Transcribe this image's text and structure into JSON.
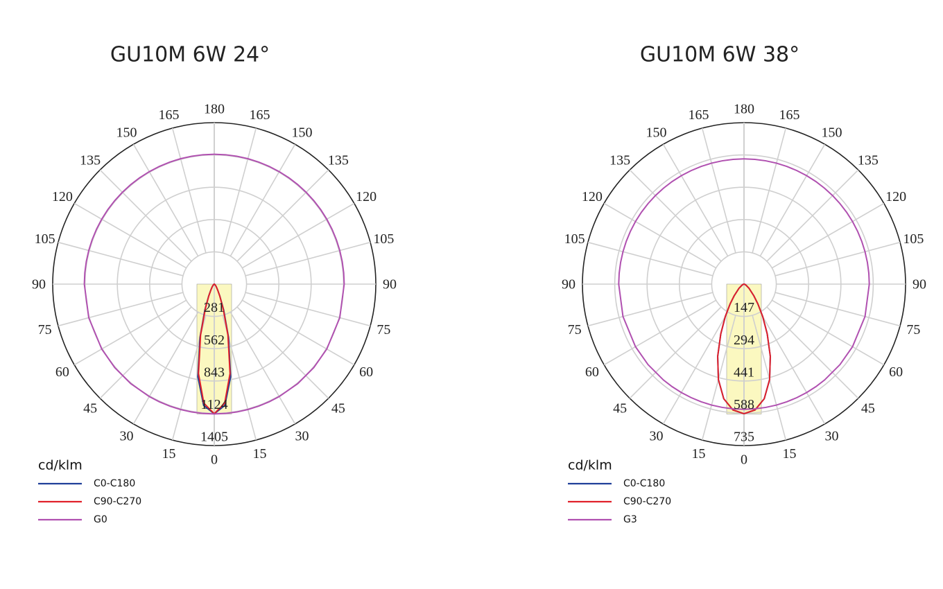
{
  "chart_data": [
    {
      "type": "polar",
      "title": "GU10M 6W 24°",
      "unit_label": "cd/klm",
      "theta": [
        0,
        5,
        10,
        15,
        20,
        25,
        30,
        40,
        50,
        60,
        75,
        90
      ],
      "rlim": [
        0,
        1405
      ],
      "rticks": [
        281,
        562,
        843,
        1124,
        1405
      ],
      "thetaticks": [
        0,
        15,
        30,
        45,
        60,
        75,
        90,
        105,
        120,
        135,
        150,
        165,
        180
      ],
      "grid": true,
      "series": [
        {
          "name": "C0-C180",
          "color": "#1f3f99",
          "values": [
            1128,
            1060,
            820,
            480,
            240,
            115,
            60,
            25,
            10,
            5,
            2,
            0
          ]
        },
        {
          "name": "C90-C270",
          "color": "#e0202a",
          "values": [
            1128,
            1040,
            790,
            460,
            225,
            110,
            58,
            24,
            10,
            5,
            2,
            0
          ]
        },
        {
          "name": "G0",
          "color": "#b050b0",
          "values": [
            1130,
            1130,
            1130,
            1130,
            1130,
            1130,
            1130,
            1130,
            1130,
            1130,
            1130,
            1130
          ]
        }
      ]
    },
    {
      "type": "polar",
      "title": "GU10M 6W 38°",
      "unit_label": "cd/klm",
      "theta": [
        0,
        5,
        10,
        15,
        20,
        25,
        30,
        35,
        40,
        50,
        60,
        75,
        90
      ],
      "rlim": [
        0,
        735
      ],
      "rticks": [
        147,
        294,
        441,
        588,
        735
      ],
      "thetaticks": [
        0,
        15,
        30,
        45,
        60,
        75,
        90,
        105,
        120,
        135,
        150,
        165,
        180
      ],
      "grid": true,
      "series": [
        {
          "name": "C0-C180",
          "color": "#1f3f99",
          "values": [
            590,
            575,
            530,
            450,
            350,
            250,
            170,
            110,
            70,
            30,
            12,
            4,
            0
          ]
        },
        {
          "name": "C90-C270",
          "color": "#e0202a",
          "values": [
            590,
            575,
            530,
            450,
            350,
            250,
            170,
            110,
            70,
            30,
            12,
            4,
            0
          ]
        },
        {
          "name": "G3",
          "color": "#b050b0",
          "values": [
            570,
            570,
            570,
            570,
            570,
            570,
            570,
            570,
            570,
            570,
            570,
            570,
            570
          ]
        }
      ]
    }
  ]
}
